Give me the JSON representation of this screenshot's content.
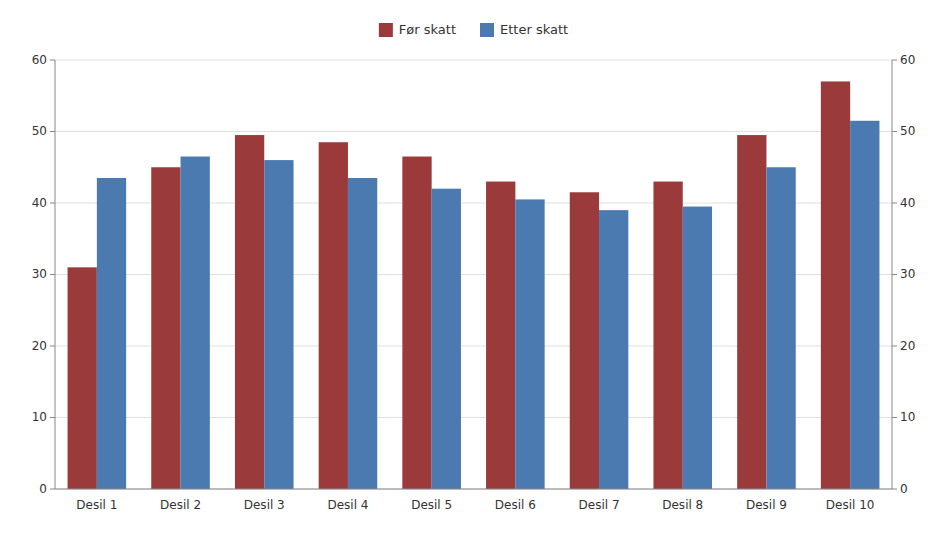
{
  "chart_data": {
    "type": "bar",
    "categories": [
      "Desil 1",
      "Desil 2",
      "Desil 3",
      "Desil 4",
      "Desil 5",
      "Desil 6",
      "Desil 7",
      "Desil 8",
      "Desil 9",
      "Desil 10"
    ],
    "series": [
      {
        "name": "Før skatt",
        "color": "#9B3A3A",
        "values": [
          31.0,
          45.0,
          49.5,
          48.5,
          46.5,
          43.0,
          41.5,
          43.0,
          49.5,
          57.0
        ]
      },
      {
        "name": "Etter skatt",
        "color": "#4A7AAF",
        "values": [
          43.5,
          46.5,
          46.0,
          43.5,
          42.0,
          40.5,
          39.0,
          39.5,
          45.0,
          51.5
        ]
      }
    ],
    "ylim": [
      0,
      60
    ],
    "yticks": [
      0,
      10,
      20,
      30,
      40,
      50,
      60
    ],
    "y2lim": [
      0,
      60
    ],
    "y2ticks": [
      0,
      10,
      20,
      30,
      40,
      50,
      60
    ],
    "grid": true,
    "legend": "top"
  }
}
